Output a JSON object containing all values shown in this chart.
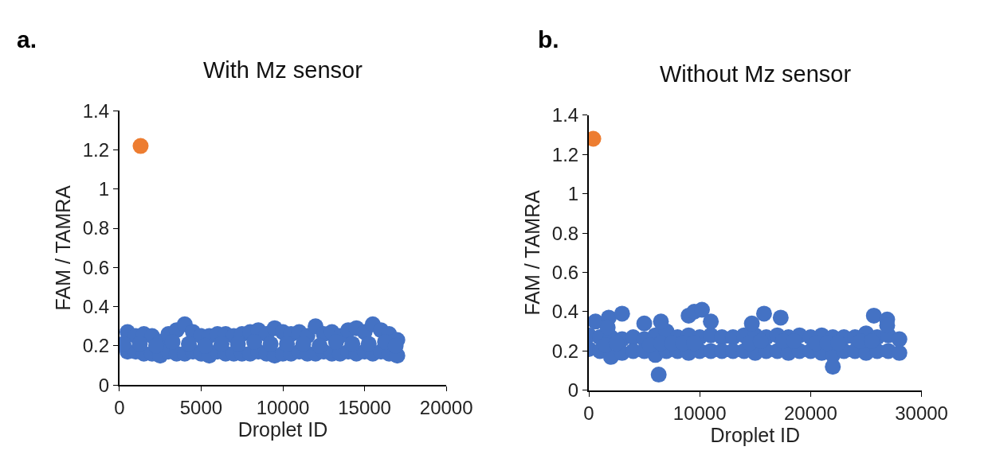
{
  "chart_data": [
    {
      "type": "scatter",
      "title": "With Mz sensor",
      "xlabel": "Droplet ID",
      "ylabel": "FAM / TAMRA",
      "annotations": [
        "a."
      ],
      "xlim": [
        0,
        20000
      ],
      "xticks": [
        0,
        5000,
        10000,
        15000,
        20000
      ],
      "ylim": [
        0,
        1.4
      ],
      "yticks": [
        0,
        0.2,
        0.4,
        0.6,
        0.8,
        1,
        1.2,
        1.4
      ],
      "series": [
        {
          "color": "#4472c4",
          "x": [
            500,
            1000,
            1500,
            2000,
            2500,
            3000,
            3500,
            4000,
            4500,
            5000,
            5500,
            6000,
            6500,
            7000,
            7500,
            8000,
            8500,
            9000,
            9500,
            10000,
            10500,
            11000,
            11500,
            12000,
            12500,
            13000,
            13500,
            14000,
            14500,
            15000,
            15500,
            16000,
            16500,
            17000,
            500,
            1000,
            1500,
            2000,
            2500,
            3000,
            3500,
            4000,
            4500,
            5000,
            5500,
            6000,
            6500,
            7000,
            7500,
            8000,
            8500,
            9000,
            9500,
            10000,
            10500,
            11000,
            11500,
            12000,
            12500,
            13000,
            13500,
            14000,
            14500,
            15000,
            15500,
            16000,
            16500,
            17000,
            250,
            1250,
            2250,
            3250,
            4250,
            5250,
            6250,
            7250,
            8250,
            9250,
            10250,
            11250,
            12250,
            13250,
            14250,
            15250,
            16250,
            16900
          ],
          "values": [
            0.27,
            0.25,
            0.26,
            0.25,
            0.22,
            0.26,
            0.28,
            0.31,
            0.27,
            0.25,
            0.25,
            0.26,
            0.26,
            0.25,
            0.26,
            0.27,
            0.28,
            0.26,
            0.29,
            0.27,
            0.26,
            0.27,
            0.25,
            0.3,
            0.26,
            0.27,
            0.25,
            0.28,
            0.29,
            0.27,
            0.31,
            0.28,
            0.26,
            0.23,
            0.17,
            0.17,
            0.16,
            0.16,
            0.15,
            0.17,
            0.16,
            0.16,
            0.17,
            0.16,
            0.15,
            0.17,
            0.16,
            0.16,
            0.16,
            0.16,
            0.17,
            0.16,
            0.15,
            0.16,
            0.16,
            0.17,
            0.16,
            0.16,
            0.17,
            0.16,
            0.16,
            0.17,
            0.16,
            0.17,
            0.16,
            0.17,
            0.16,
            0.15,
            0.21,
            0.21,
            0.2,
            0.22,
            0.21,
            0.2,
            0.21,
            0.21,
            0.22,
            0.21,
            0.21,
            0.21,
            0.2,
            0.22,
            0.21,
            0.21,
            0.22,
            0.2
          ]
        },
        {
          "color": "#ed7d31",
          "x": [
            1300
          ],
          "values": [
            1.22
          ]
        }
      ]
    },
    {
      "type": "scatter",
      "title": "Without Mz sensor",
      "xlabel": "Droplet ID",
      "ylabel": "FAM / TAMRA",
      "annotations": [
        "b."
      ],
      "xlim": [
        0,
        30000
      ],
      "xticks": [
        0,
        10000,
        20000,
        30000
      ],
      "ylim": [
        0,
        1.4
      ],
      "yticks": [
        0,
        0.2,
        0.4,
        0.6,
        0.8,
        1,
        1.2,
        1.4
      ],
      "series": [
        {
          "color": "#4472c4",
          "x": [
            0,
            1000,
            2000,
            3000,
            4000,
            5000,
            6000,
            7000,
            8000,
            9000,
            10000,
            11000,
            12000,
            13000,
            14000,
            15000,
            16000,
            17000,
            18000,
            19000,
            20000,
            21000,
            22000,
            23000,
            24000,
            25000,
            26000,
            27000,
            28000,
            0,
            1000,
            2000,
            3000,
            4000,
            5000,
            6000,
            7000,
            8000,
            9000,
            10000,
            11000,
            12000,
            13000,
            14000,
            15000,
            16000,
            17000,
            18000,
            19000,
            20000,
            21000,
            22000,
            23000,
            24000,
            25000,
            26000,
            27000,
            28000,
            1500,
            2500,
            5500,
            6500,
            7500,
            8500,
            9500,
            14500,
            15500,
            17500,
            18500,
            20500,
            21500,
            22500,
            24500,
            25500,
            600,
            1800,
            1700,
            3000,
            5000,
            6300,
            6500,
            9000,
            9500,
            10200,
            11000,
            14700,
            15800,
            17300,
            22000,
            25700,
            26900,
            26900
          ],
          "values": [
            0.28,
            0.27,
            0.27,
            0.26,
            0.27,
            0.26,
            0.28,
            0.3,
            0.27,
            0.28,
            0.27,
            0.28,
            0.27,
            0.27,
            0.28,
            0.28,
            0.27,
            0.28,
            0.27,
            0.28,
            0.27,
            0.28,
            0.27,
            0.27,
            0.27,
            0.29,
            0.27,
            0.28,
            0.26,
            0.21,
            0.2,
            0.17,
            0.19,
            0.2,
            0.2,
            0.18,
            0.2,
            0.2,
            0.19,
            0.2,
            0.2,
            0.2,
            0.2,
            0.2,
            0.19,
            0.2,
            0.2,
            0.19,
            0.2,
            0.2,
            0.19,
            0.18,
            0.2,
            0.2,
            0.19,
            0.2,
            0.2,
            0.19,
            0.23,
            0.24,
            0.23,
            0.24,
            0.24,
            0.24,
            0.24,
            0.24,
            0.25,
            0.25,
            0.25,
            0.24,
            0.24,
            0.24,
            0.25,
            0.25,
            0.35,
            0.37,
            0.32,
            0.39,
            0.34,
            0.08,
            0.35,
            0.38,
            0.4,
            0.41,
            0.35,
            0.34,
            0.39,
            0.37,
            0.12,
            0.38,
            0.36,
            0.33
          ]
        },
        {
          "color": "#ed7d31",
          "x": [
            400
          ],
          "values": [
            1.28
          ]
        }
      ]
    }
  ]
}
